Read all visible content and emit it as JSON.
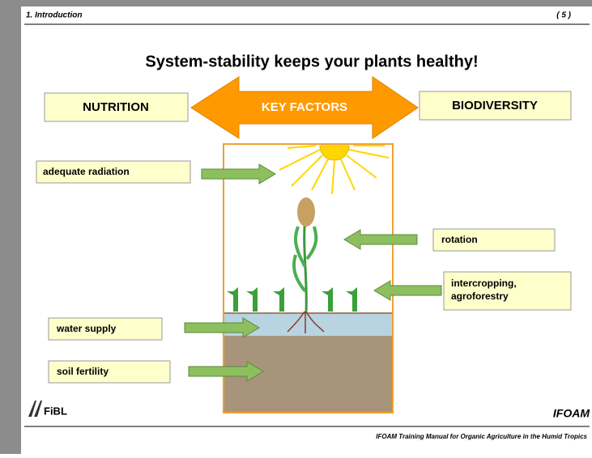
{
  "header": {
    "section": "1. Introduction",
    "page": "( 5 )"
  },
  "title": "System-stability keeps your plants healthy!",
  "top_row": {
    "left": "NUTRITION",
    "center": "KEY FACTORS",
    "right": "BIODIVERSITY"
  },
  "labels": {
    "radiation": "adequate radiation",
    "rotation": "rotation",
    "intercropping": [
      "intercropping,",
      "agroforestry"
    ],
    "water": "water supply",
    "soil": "soil fertility"
  },
  "footer": {
    "left_logo": "FiBL",
    "right_logo": "IFOAM",
    "text": "IFOAM Training Manual for Organic Agriculture in the Humid Tropics"
  }
}
